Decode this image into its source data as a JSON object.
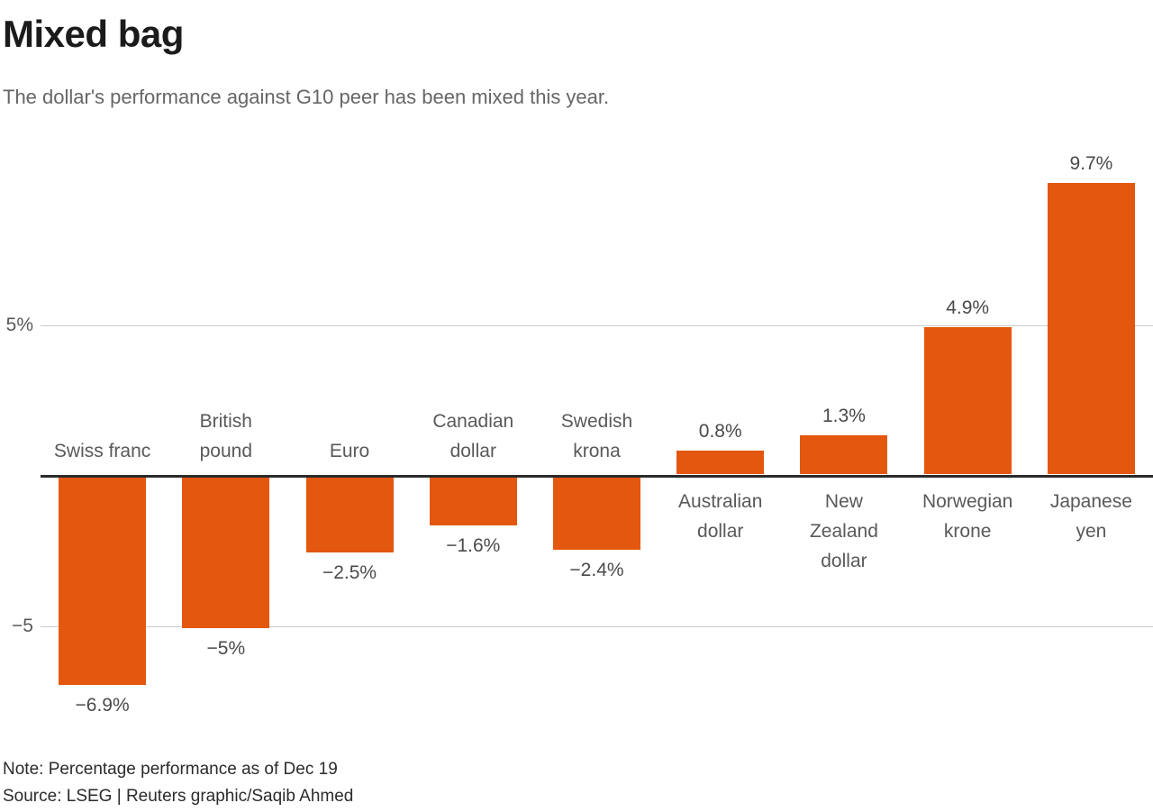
{
  "chart_data": {
    "type": "bar",
    "title": "Mixed bag",
    "subtitle": "The dollar's performance against G10 peer has been mixed this year.",
    "note": "Note: Percentage performance as of Dec 19",
    "source": "Source: LSEG | Reuters graphic/Saqib Ahmed",
    "categories": [
      "Swiss franc",
      "British pound",
      "Euro",
      "Canadian dollar",
      "Swedish krona",
      "Australian dollar",
      "New Zealand dollar",
      "Norwegian krone",
      "Japanese yen"
    ],
    "category_label_lines": [
      [
        "Swiss franc"
      ],
      [
        "British",
        "pound"
      ],
      [
        "Euro"
      ],
      [
        "Canadian",
        "dollar"
      ],
      [
        "Swedish",
        "krona"
      ],
      [
        "Australian",
        "dollar"
      ],
      [
        "New",
        "Zealand",
        "dollar"
      ],
      [
        "Norwegian",
        "krone"
      ],
      [
        "Japanese",
        "yen"
      ]
    ],
    "values": [
      -6.9,
      -5,
      -2.5,
      -1.6,
      -2.4,
      0.8,
      1.3,
      4.9,
      9.7
    ],
    "value_labels": [
      "−6.9%",
      "−5%",
      "−2.5%",
      "−1.6%",
      "−2.4%",
      "0.8%",
      "1.3%",
      "4.9%",
      "9.7%"
    ],
    "y_ticks": [
      {
        "value": 5,
        "label": "5%"
      },
      {
        "value": -5,
        "label": "−5"
      }
    ],
    "ylim": [
      -8,
      11
    ],
    "grid": "horizontal",
    "legend": "none",
    "bar_color": "#e4570e",
    "gridline_color": "#cccccc",
    "zero_line_color": "#2b2b2b"
  }
}
